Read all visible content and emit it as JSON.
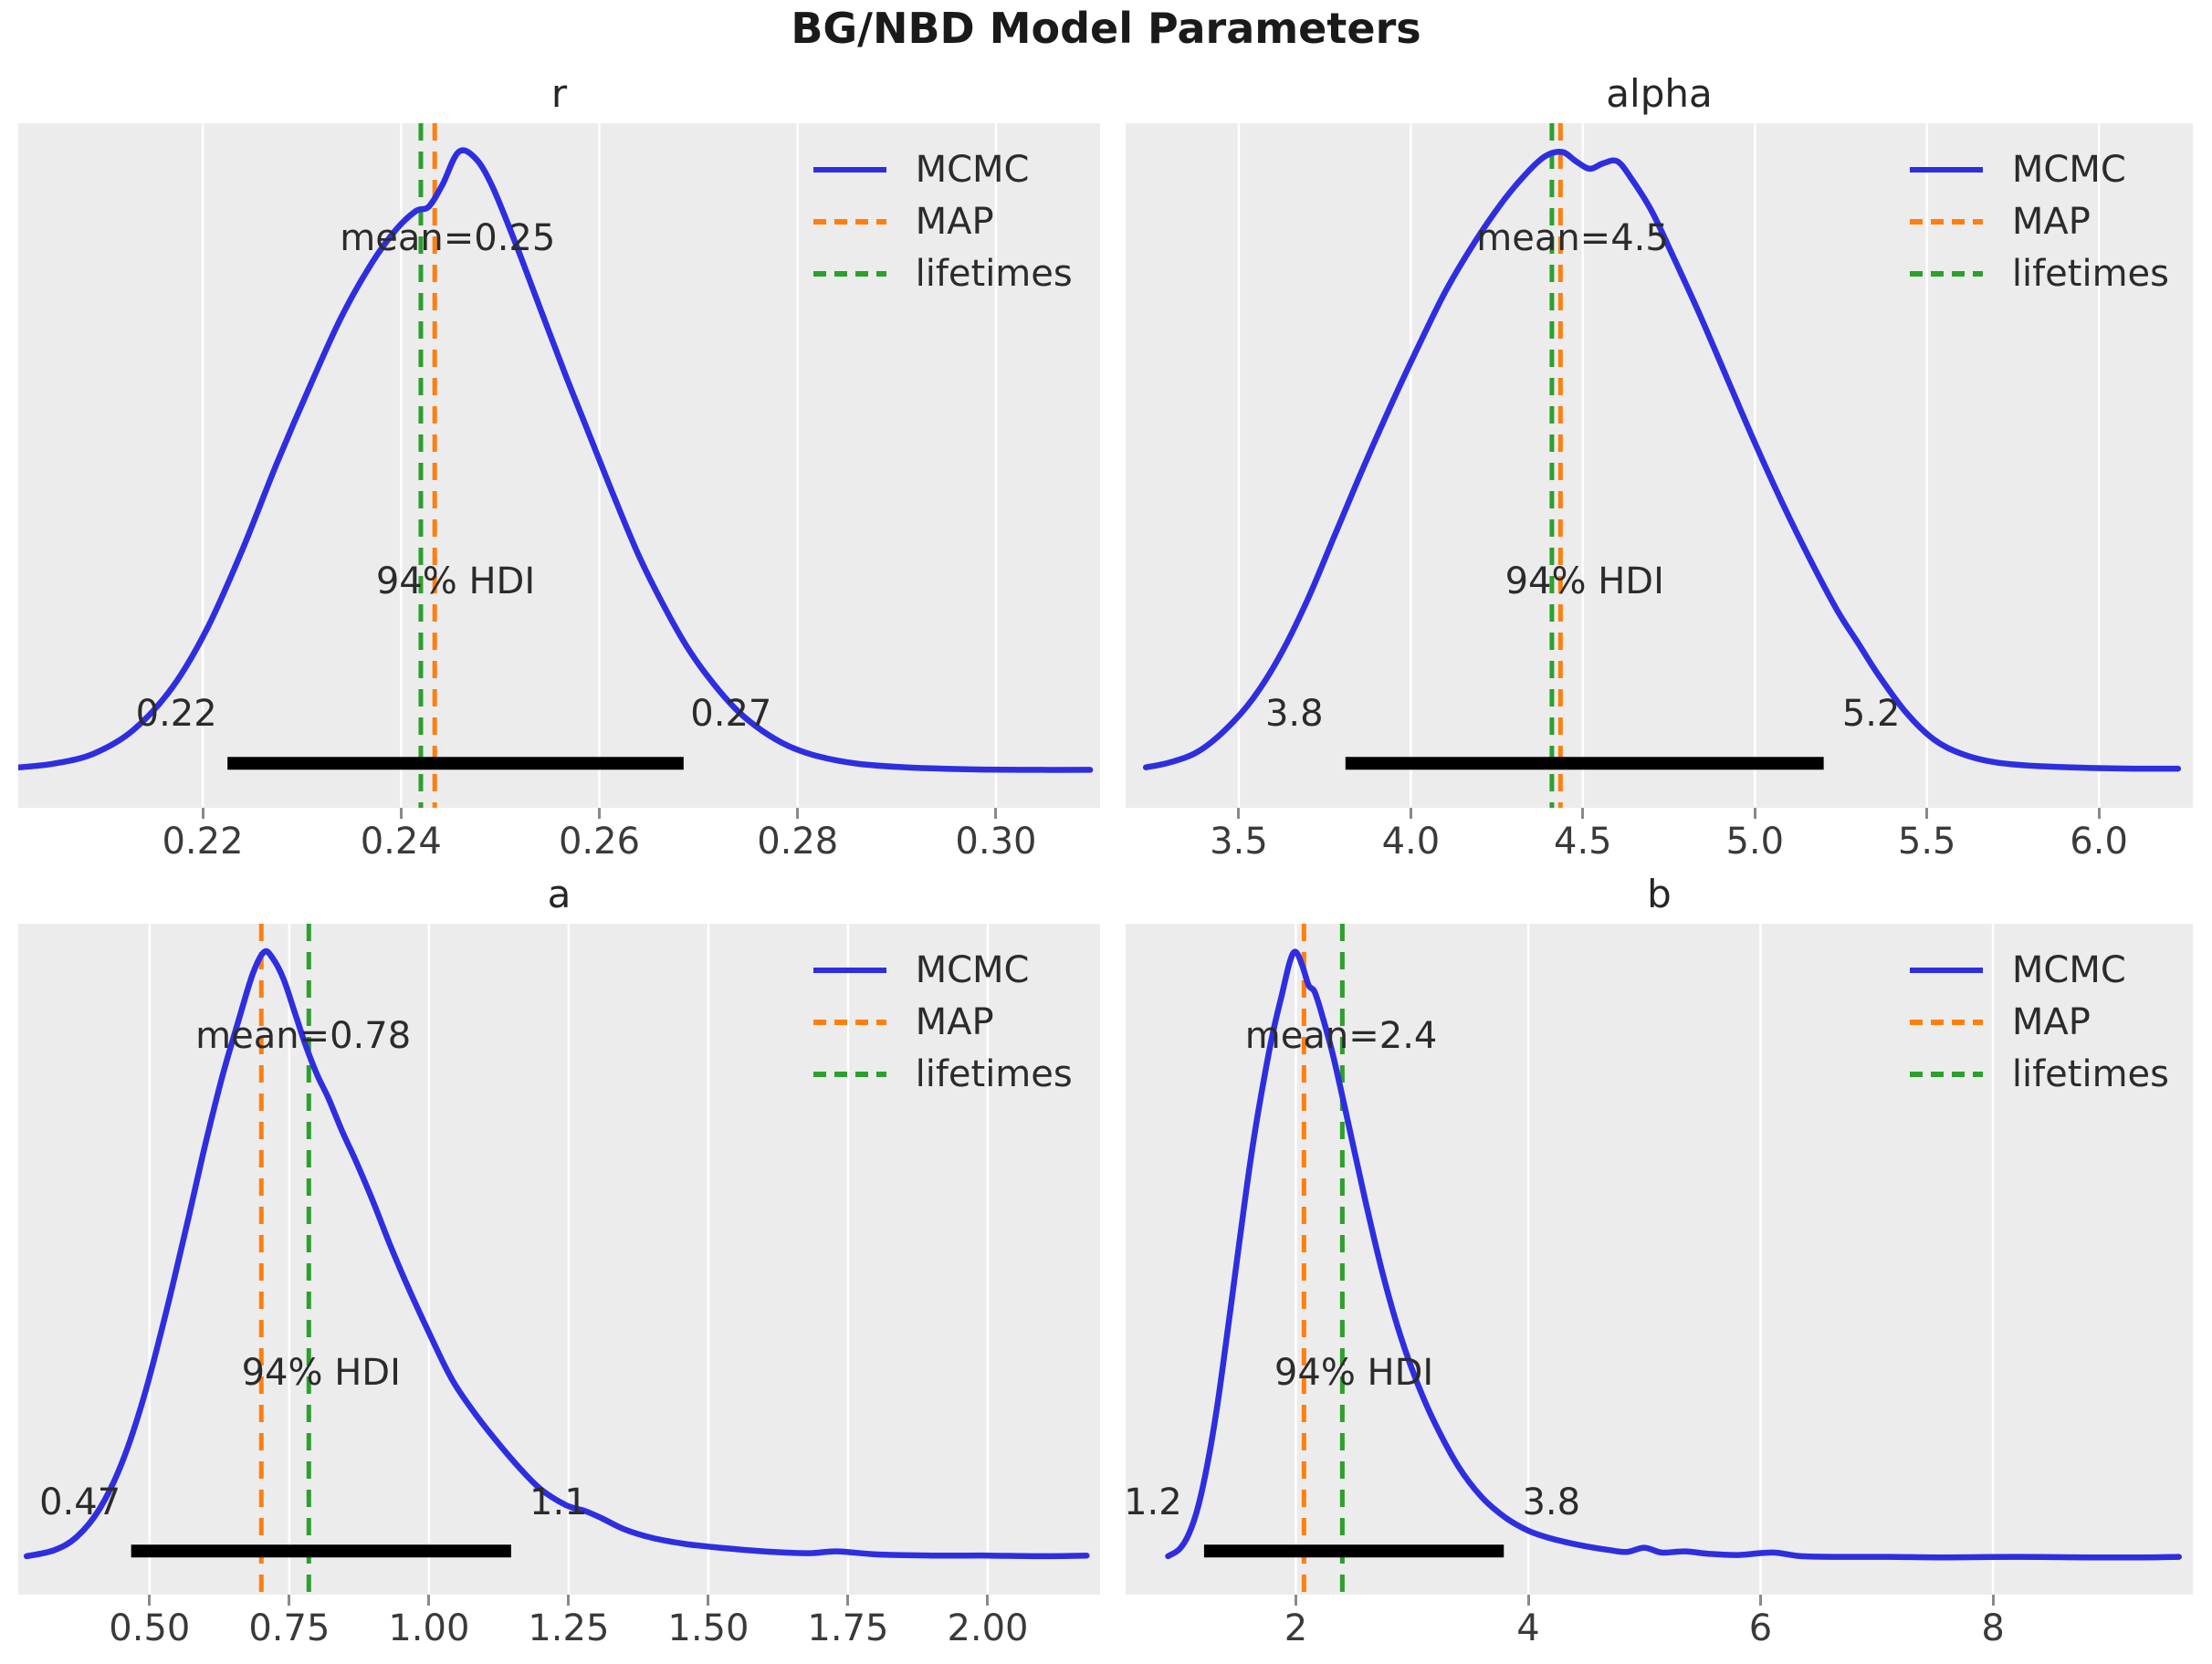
{
  "figure": {
    "title": "BG/NBD Model Parameters",
    "colors": {
      "background": "#ffffff",
      "axes_background": "#ececec",
      "grid": "#ffffff",
      "text": "#262626",
      "tick": "#8a8a8a",
      "mcmc_blue": "#2e2ee0",
      "map_orange": "#ff7f0e",
      "lifetimes_green": "#2ca02c",
      "hdi_bar_black": "#000000"
    }
  },
  "legend": {
    "items": [
      {
        "id": "mcmc",
        "label": "MCMC",
        "color": "#2e2ee0",
        "style": "solid"
      },
      {
        "id": "map",
        "label": "MAP",
        "color": "#ff7f0e",
        "style": "dashed"
      },
      {
        "id": "lifetimes",
        "label": "lifetimes",
        "color": "#2ca02c",
        "style": "dashed"
      }
    ]
  },
  "chart_data": [
    {
      "id": "r",
      "type": "line",
      "title": "r",
      "x_range": [
        0.2014,
        0.3105
      ],
      "tick_values": [
        0.22,
        0.24,
        0.26,
        0.28,
        0.3
      ],
      "tick_labels": [
        "0.22",
        "0.24",
        "0.26",
        "0.28",
        "0.30"
      ],
      "mean": {
        "label": "mean=0.25",
        "x": 0.2447
      },
      "hdi": {
        "label": "94% HDI",
        "low": 0.2225,
        "high": 0.2685,
        "low_label": "0.22",
        "high_label": "0.27"
      },
      "map_line": 0.2434,
      "lifetimes_line": 0.242,
      "curve": [
        [
          0.2015,
          0.01
        ],
        [
          0.205,
          0.016
        ],
        [
          0.209,
          0.032
        ],
        [
          0.213,
          0.07
        ],
        [
          0.217,
          0.14
        ],
        [
          0.2205,
          0.235
        ],
        [
          0.224,
          0.36
        ],
        [
          0.2275,
          0.5
        ],
        [
          0.231,
          0.63
        ],
        [
          0.234,
          0.735
        ],
        [
          0.237,
          0.82
        ],
        [
          0.2395,
          0.875
        ],
        [
          0.2415,
          0.905
        ],
        [
          0.2428,
          0.912
        ],
        [
          0.2442,
          0.948
        ],
        [
          0.2458,
          1.0
        ],
        [
          0.2475,
          0.99
        ],
        [
          0.2492,
          0.945
        ],
        [
          0.2515,
          0.855
        ],
        [
          0.254,
          0.75
        ],
        [
          0.2565,
          0.645
        ],
        [
          0.259,
          0.545
        ],
        [
          0.2615,
          0.445
        ],
        [
          0.264,
          0.35
        ],
        [
          0.2665,
          0.27
        ],
        [
          0.269,
          0.2
        ],
        [
          0.2715,
          0.145
        ],
        [
          0.274,
          0.1
        ],
        [
          0.2765,
          0.068
        ],
        [
          0.279,
          0.045
        ],
        [
          0.282,
          0.028
        ],
        [
          0.286,
          0.016
        ],
        [
          0.291,
          0.01
        ],
        [
          0.297,
          0.007
        ],
        [
          0.304,
          0.006
        ],
        [
          0.3095,
          0.006
        ]
      ]
    },
    {
      "id": "alpha",
      "type": "line",
      "title": "alpha",
      "x_range": [
        3.171,
        6.273
      ],
      "tick_values": [
        3.5,
        4.0,
        4.5,
        5.0,
        5.5,
        6.0
      ],
      "tick_labels": [
        "3.5",
        "4.0",
        "4.5",
        "5.0",
        "5.5",
        "6.0"
      ],
      "mean": {
        "label": "mean=4.5",
        "x": 4.47
      },
      "hdi": {
        "label": "94% HDI",
        "low": 3.81,
        "high": 5.2,
        "low_label": "3.8",
        "high_label": "5.2"
      },
      "map_line": 4.435,
      "lifetimes_line": 4.41,
      "curve": [
        [
          3.23,
          0.01
        ],
        [
          3.3,
          0.018
        ],
        [
          3.38,
          0.035
        ],
        [
          3.46,
          0.07
        ],
        [
          3.54,
          0.12
        ],
        [
          3.62,
          0.19
        ],
        [
          3.7,
          0.28
        ],
        [
          3.78,
          0.385
        ],
        [
          3.86,
          0.49
        ],
        [
          3.94,
          0.59
        ],
        [
          4.02,
          0.685
        ],
        [
          4.1,
          0.775
        ],
        [
          4.18,
          0.85
        ],
        [
          4.26,
          0.915
        ],
        [
          4.33,
          0.962
        ],
        [
          4.39,
          0.993
        ],
        [
          4.44,
          1.0
        ],
        [
          4.48,
          0.985
        ],
        [
          4.52,
          0.973
        ],
        [
          4.56,
          0.982
        ],
        [
          4.6,
          0.985
        ],
        [
          4.64,
          0.958
        ],
        [
          4.7,
          0.905
        ],
        [
          4.76,
          0.835
        ],
        [
          4.84,
          0.738
        ],
        [
          4.92,
          0.635
        ],
        [
          5.0,
          0.532
        ],
        [
          5.08,
          0.435
        ],
        [
          5.16,
          0.345
        ],
        [
          5.24,
          0.262
        ],
        [
          5.3,
          0.21
        ],
        [
          5.36,
          0.158
        ],
        [
          5.44,
          0.098
        ],
        [
          5.52,
          0.055
        ],
        [
          5.6,
          0.032
        ],
        [
          5.7,
          0.018
        ],
        [
          5.82,
          0.012
        ],
        [
          5.98,
          0.009
        ],
        [
          6.1,
          0.008
        ],
        [
          6.23,
          0.008
        ]
      ]
    },
    {
      "id": "a",
      "type": "line",
      "title": "a",
      "x_range": [
        0.265,
        2.201
      ],
      "tick_values": [
        0.5,
        0.75,
        1.0,
        1.25,
        1.5,
        1.75,
        2.0
      ],
      "tick_labels": [
        "0.50",
        "0.75",
        "1.00",
        "1.25",
        "1.50",
        "1.75",
        "2.00"
      ],
      "mean": {
        "label": "mean=0.78",
        "x": 0.775
      },
      "hdi": {
        "label": "94% HDI",
        "low": 0.467,
        "high": 1.147,
        "low_label": "0.47",
        "high_label": "1.1"
      },
      "map_line": 0.7,
      "lifetimes_line": 0.785,
      "curve": [
        [
          0.28,
          0.008
        ],
        [
          0.33,
          0.018
        ],
        [
          0.37,
          0.04
        ],
        [
          0.41,
          0.085
        ],
        [
          0.45,
          0.16
        ],
        [
          0.49,
          0.27
        ],
        [
          0.53,
          0.41
        ],
        [
          0.57,
          0.565
        ],
        [
          0.6,
          0.685
        ],
        [
          0.63,
          0.795
        ],
        [
          0.66,
          0.89
        ],
        [
          0.685,
          0.965
        ],
        [
          0.705,
          1.0
        ],
        [
          0.72,
          0.99
        ],
        [
          0.74,
          0.955
        ],
        [
          0.76,
          0.9
        ],
        [
          0.78,
          0.845
        ],
        [
          0.8,
          0.798
        ],
        [
          0.82,
          0.76
        ],
        [
          0.845,
          0.705
        ],
        [
          0.87,
          0.655
        ],
        [
          0.9,
          0.59
        ],
        [
          0.93,
          0.52
        ],
        [
          0.96,
          0.455
        ],
        [
          1.0,
          0.375
        ],
        [
          1.04,
          0.3
        ],
        [
          1.08,
          0.245
        ],
        [
          1.12,
          0.198
        ],
        [
          1.16,
          0.155
        ],
        [
          1.2,
          0.118
        ],
        [
          1.245,
          0.092
        ],
        [
          1.28,
          0.082
        ],
        [
          1.31,
          0.07
        ],
        [
          1.35,
          0.052
        ],
        [
          1.4,
          0.038
        ],
        [
          1.46,
          0.028
        ],
        [
          1.52,
          0.022
        ],
        [
          1.6,
          0.016
        ],
        [
          1.68,
          0.013
        ],
        [
          1.73,
          0.016
        ],
        [
          1.8,
          0.011
        ],
        [
          1.9,
          0.009
        ],
        [
          2.0,
          0.009
        ],
        [
          2.1,
          0.008
        ],
        [
          2.177,
          0.009
        ]
      ]
    },
    {
      "id": "b",
      "type": "line",
      "title": "b",
      "x_range": [
        0.535,
        9.72
      ],
      "tick_values": [
        2,
        4,
        6,
        8
      ],
      "tick_labels": [
        "2",
        "4",
        "6",
        "8"
      ],
      "mean": {
        "label": "mean=2.4",
        "x": 2.39
      },
      "hdi": {
        "label": "94% HDI",
        "low": 1.21,
        "high": 3.79,
        "low_label": "1.2",
        "high_label": "3.8"
      },
      "map_line": 2.07,
      "lifetimes_line": 2.4,
      "curve": [
        [
          0.9,
          0.008
        ],
        [
          1.0,
          0.02
        ],
        [
          1.08,
          0.045
        ],
        [
          1.16,
          0.09
        ],
        [
          1.24,
          0.16
        ],
        [
          1.32,
          0.25
        ],
        [
          1.4,
          0.36
        ],
        [
          1.48,
          0.475
        ],
        [
          1.56,
          0.59
        ],
        [
          1.64,
          0.695
        ],
        [
          1.72,
          0.785
        ],
        [
          1.8,
          0.865
        ],
        [
          1.88,
          0.93
        ],
        [
          1.95,
          0.985
        ],
        [
          2.0,
          1.0
        ],
        [
          2.06,
          0.975
        ],
        [
          2.11,
          0.945
        ],
        [
          2.16,
          0.935
        ],
        [
          2.22,
          0.9
        ],
        [
          2.32,
          0.83
        ],
        [
          2.45,
          0.72
        ],
        [
          2.6,
          0.59
        ],
        [
          2.75,
          0.47
        ],
        [
          2.9,
          0.37
        ],
        [
          3.05,
          0.29
        ],
        [
          3.2,
          0.225
        ],
        [
          3.4,
          0.155
        ],
        [
          3.6,
          0.105
        ],
        [
          3.8,
          0.072
        ],
        [
          4.0,
          0.05
        ],
        [
          4.2,
          0.037
        ],
        [
          4.45,
          0.026
        ],
        [
          4.7,
          0.018
        ],
        [
          4.85,
          0.015
        ],
        [
          5.0,
          0.022
        ],
        [
          5.15,
          0.014
        ],
        [
          5.35,
          0.016
        ],
        [
          5.55,
          0.012
        ],
        [
          5.8,
          0.01
        ],
        [
          6.1,
          0.014
        ],
        [
          6.35,
          0.008
        ],
        [
          6.7,
          0.007
        ],
        [
          7.1,
          0.007
        ],
        [
          7.6,
          0.006
        ],
        [
          8.2,
          0.007
        ],
        [
          8.8,
          0.006
        ],
        [
          9.3,
          0.006
        ],
        [
          9.6,
          0.007
        ]
      ]
    }
  ]
}
